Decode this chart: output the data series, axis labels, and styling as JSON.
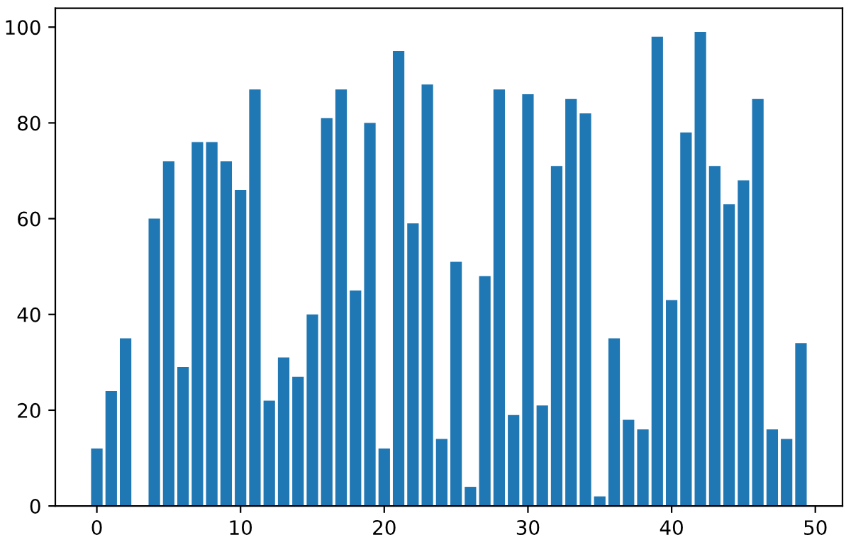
{
  "chart_data": {
    "type": "bar",
    "x": [
      0,
      1,
      2,
      3,
      4,
      5,
      6,
      7,
      8,
      9,
      10,
      11,
      12,
      13,
      14,
      15,
      16,
      17,
      18,
      19,
      20,
      21,
      22,
      23,
      24,
      25,
      26,
      27,
      28,
      29,
      30,
      31,
      32,
      33,
      34,
      35,
      36,
      37,
      38,
      39,
      40,
      41,
      42,
      43,
      44,
      45,
      46,
      47,
      48,
      49
    ],
    "values": [
      12,
      24,
      35,
      0,
      60,
      72,
      29,
      76,
      76,
      72,
      66,
      87,
      22,
      31,
      27,
      40,
      81,
      87,
      45,
      80,
      12,
      95,
      59,
      88,
      14,
      51,
      4,
      48,
      87,
      19,
      86,
      21,
      71,
      85,
      82,
      2,
      35,
      18,
      16,
      98,
      43,
      78,
      99,
      71,
      63,
      68,
      85,
      16,
      14,
      34
    ],
    "color": "#1f77b4",
    "xlim": [
      -2.89,
      51.89
    ],
    "xticks": [
      0,
      10,
      20,
      30,
      40,
      50
    ],
    "ylim": [
      0,
      103.95
    ],
    "yticks": [
      0,
      20,
      40,
      60,
      80,
      100
    ],
    "grid": false
  }
}
